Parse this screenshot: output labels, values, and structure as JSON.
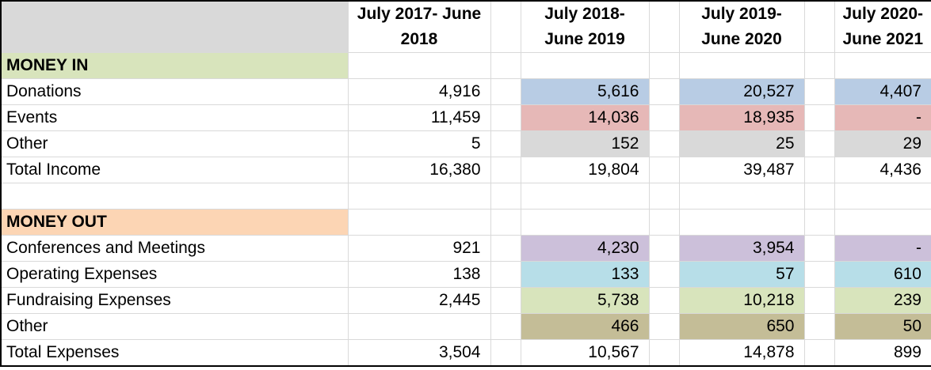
{
  "header": {
    "periods": [
      "July 2017- June 2018",
      "July 2018- June 2019",
      "July 2019- June 2020",
      "July 2020- June 2021"
    ]
  },
  "money_in": {
    "title": "MONEY IN",
    "rows": [
      {
        "label": "Donations",
        "values": [
          "4,916",
          "5,616",
          "20,527",
          "4,407"
        ]
      },
      {
        "label": "Events",
        "values": [
          "11,459",
          "14,036",
          "18,935",
          "-"
        ]
      },
      {
        "label": "Other",
        "values": [
          "5",
          "152",
          "25",
          "29"
        ]
      },
      {
        "label": "Total Income",
        "values": [
          "16,380",
          "19,804",
          "39,487",
          "4,436"
        ]
      }
    ]
  },
  "money_out": {
    "title": "MONEY OUT",
    "rows": [
      {
        "label": "Conferences and Meetings",
        "values": [
          "921",
          "4,230",
          "3,954",
          "-"
        ]
      },
      {
        "label": "Operating Expenses",
        "values": [
          "138",
          "133",
          "57",
          "610"
        ]
      },
      {
        "label": "Fundraising Expenses",
        "values": [
          "2,445",
          "5,738",
          "10,218",
          "239"
        ]
      },
      {
        "label": "Other",
        "values": [
          "",
          "466",
          "650",
          "50"
        ]
      },
      {
        "label": "Total Expenses",
        "values": [
          "3,504",
          "10,567",
          "14,878",
          "899"
        ]
      }
    ]
  },
  "colors": {
    "header_corner": "#d9d9d9",
    "money_in_header": "#d8e4bc",
    "money_out_header": "#fcd5b4",
    "donations": "#b8cce4",
    "events": "#e6b8b7",
    "other_income": "#d9d9d9",
    "conferences": "#ccc0da",
    "operating": "#b7dee8",
    "fundraising": "#d8e4bc",
    "other_expenses": "#c4bd97"
  }
}
